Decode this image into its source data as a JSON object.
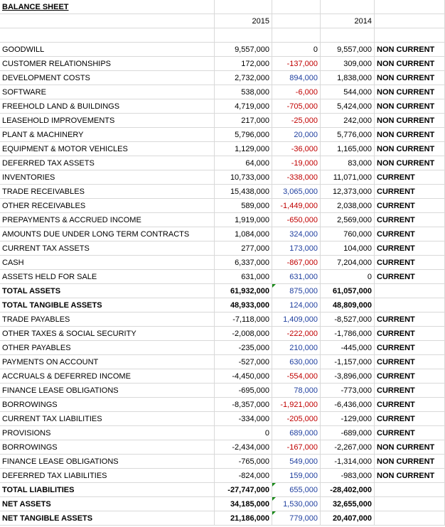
{
  "title": "BALANCE SHEET",
  "header": {
    "current_year": "2015",
    "prior_year": "2014"
  },
  "change_colors": {
    "negative": "#c00000",
    "positive": "#1f3f9f",
    "zero": "#000000"
  },
  "rows": [
    {
      "label": "GOODWILL",
      "current": "9,557,000",
      "change": "0",
      "prior": "9,557,000",
      "class": "NON CURRENT"
    },
    {
      "label": "CUSTOMER RELATIONSHIPS",
      "current": "172,000",
      "change": "-137,000",
      "prior": "309,000",
      "class": "NON CURRENT"
    },
    {
      "label": "DEVELOPMENT COSTS",
      "current": "2,732,000",
      "change": "894,000",
      "prior": "1,838,000",
      "class": "NON CURRENT"
    },
    {
      "label": "SOFTWARE",
      "current": "538,000",
      "change": "-6,000",
      "prior": "544,000",
      "class": "NON CURRENT"
    },
    {
      "label": "FREEHOLD LAND & BUILDINGS",
      "current": "4,719,000",
      "change": "-705,000",
      "prior": "5,424,000",
      "class": "NON CURRENT"
    },
    {
      "label": "LEASEHOLD IMPROVEMENTS",
      "current": "217,000",
      "change": "-25,000",
      "prior": "242,000",
      "class": "NON CURRENT"
    },
    {
      "label": "PLANT & MACHINERY",
      "current": "5,796,000",
      "change": "20,000",
      "prior": "5,776,000",
      "class": "NON CURRENT"
    },
    {
      "label": "EQUIPMENT & MOTOR VEHICLES",
      "current": "1,129,000",
      "change": "-36,000",
      "prior": "1,165,000",
      "class": "NON CURRENT"
    },
    {
      "label": "DEFERRED TAX ASSETS",
      "current": "64,000",
      "change": "-19,000",
      "prior": "83,000",
      "class": "NON CURRENT"
    },
    {
      "label": "INVENTORIES",
      "current": "10,733,000",
      "change": "-338,000",
      "prior": "11,071,000",
      "class": "CURRENT"
    },
    {
      "label": "TRADE RECEIVABLES",
      "current": "15,438,000",
      "change": "3,065,000",
      "prior": "12,373,000",
      "class": "CURRENT"
    },
    {
      "label": "OTHER RECEIVABLES",
      "current": "589,000",
      "change": "-1,449,000",
      "prior": "2,038,000",
      "class": "CURRENT"
    },
    {
      "label": "PREPAYMENTS & ACCRUED INCOME",
      "current": "1,919,000",
      "change": "-650,000",
      "prior": "2,569,000",
      "class": "CURRENT"
    },
    {
      "label": "AMOUNTS DUE UNDER LONG TERM CONTRACTS",
      "current": "1,084,000",
      "change": "324,000",
      "prior": "760,000",
      "class": "CURRENT"
    },
    {
      "label": "CURRENT TAX ASSETS",
      "current": "277,000",
      "change": "173,000",
      "prior": "104,000",
      "class": "CURRENT"
    },
    {
      "label": "CASH",
      "current": "6,337,000",
      "change": "-867,000",
      "prior": "7,204,000",
      "class": "CURRENT"
    },
    {
      "label": "ASSETS HELD FOR SALE",
      "current": "631,000",
      "change": "631,000",
      "prior": "0",
      "class": "CURRENT"
    },
    {
      "label": "TOTAL ASSETS",
      "current": "61,932,000",
      "change": "875,000",
      "prior": "61,057,000",
      "bold": true
    },
    {
      "label": "TOTAL TANGIBLE ASSETS",
      "current": "48,933,000",
      "change": "124,000",
      "prior": "48,809,000",
      "bold": true
    },
    {
      "label": "TRADE PAYABLES",
      "current": "-7,118,000",
      "change": "1,409,000",
      "prior": "-8,527,000",
      "class": "CURRENT"
    },
    {
      "label": "OTHER TAXES & SOCIAL SECURITY",
      "current": "-2,008,000",
      "change": "-222,000",
      "prior": "-1,786,000",
      "class": "CURRENT"
    },
    {
      "label": "OTHER PAYABLES",
      "current": "-235,000",
      "change": "210,000",
      "prior": "-445,000",
      "class": "CURRENT"
    },
    {
      "label": "PAYMENTS ON ACCOUNT",
      "current": "-527,000",
      "change": "630,000",
      "prior": "-1,157,000",
      "class": "CURRENT"
    },
    {
      "label": "ACCRUALS & DEFERRED INCOME",
      "current": "-4,450,000",
      "change": "-554,000",
      "prior": "-3,896,000",
      "class": "CURRENT"
    },
    {
      "label": "FINANCE LEASE OBLIGATIONS",
      "current": "-695,000",
      "change": "78,000",
      "prior": "-773,000",
      "class": "CURRENT"
    },
    {
      "label": "BORROWINGS",
      "current": "-8,357,000",
      "change": "-1,921,000",
      "prior": "-6,436,000",
      "class": "CURRENT"
    },
    {
      "label": "CURRENT TAX LIABILITIES",
      "current": "-334,000",
      "change": "-205,000",
      "prior": "-129,000",
      "class": "CURRENT"
    },
    {
      "label": "PROVISIONS",
      "current": "0",
      "change": "689,000",
      "prior": "-689,000",
      "class": "CURRENT"
    },
    {
      "label": "BORROWINGS",
      "current": "-2,434,000",
      "change": "-167,000",
      "prior": "-2,267,000",
      "class": "NON CURRENT"
    },
    {
      "label": "FINANCE LEASE OBLIGATIONS",
      "current": "-765,000",
      "change": "549,000",
      "prior": "-1,314,000",
      "class": "NON CURRENT"
    },
    {
      "label": "DEFERRED TAX LIABILITIES",
      "current": "-824,000",
      "change": "159,000",
      "prior": "-983,000",
      "class": "NON CURRENT"
    },
    {
      "label": "TOTAL LIABILITIES",
      "current": "-27,747,000",
      "change": "655,000",
      "prior": "-28,402,000",
      "bold": true
    },
    {
      "label": "NET ASSETS",
      "current": "34,185,000",
      "change": "1,530,000",
      "prior": "32,655,000",
      "bold": true
    },
    {
      "label": "NET TANGIBLE ASSETS",
      "current": "21,186,000",
      "change": "779,000",
      "prior": "20,407,000",
      "bold": true
    }
  ]
}
